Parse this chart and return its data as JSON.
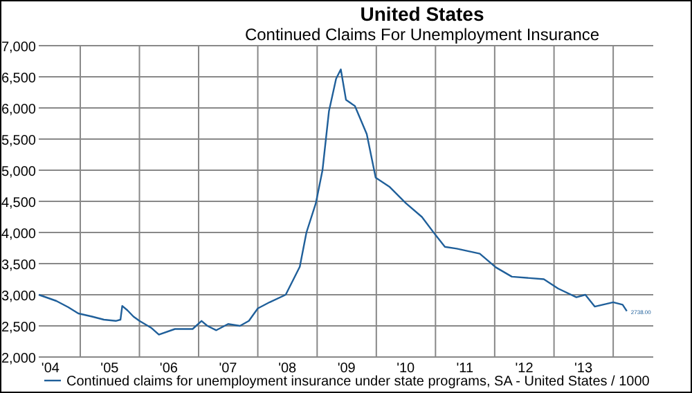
{
  "chart_data": {
    "type": "line",
    "title": "United States",
    "subtitle": "Continued Claims For Unemployment Insurance",
    "x": [
      "2004-04-20",
      "2004-06-14",
      "2004-08-07",
      "2004-10-19",
      "2004-12-20",
      "2005-03-14",
      "2005-05-27",
      "2005-08-08",
      "2005-09-06",
      "2005-09-17",
      "2005-10-19",
      "2005-11-25",
      "2006-01-01",
      "2006-03-14",
      "2006-05-01",
      "2006-08-08",
      "2006-11-25",
      "2007-01-19",
      "2007-02-24",
      "2007-04-20",
      "2007-07-02",
      "2007-09-13",
      "2007-11-07",
      "2008-01-01",
      "2008-03-14",
      "2008-06-21",
      "2008-09-16",
      "2008-10-27",
      "2008-12-24",
      "2009-02-03",
      "2009-03-15",
      "2009-04-28",
      "2009-05-27",
      "2009-06-28",
      "2009-08-22",
      "2009-11-03",
      "2009-12-28",
      "2010-03-25",
      "2010-07-02",
      "2010-10-09",
      "2011-01-01",
      "2011-02-28",
      "2011-05-12",
      "2011-10-01",
      "2012-01-08",
      "2012-04-16",
      "2012-10-30",
      "2013-01-26",
      "2013-05-19",
      "2013-07-13",
      "2013-09-09",
      "2014-01-01",
      "2014-02-28",
      "2014-03-26"
    ],
    "series": [
      {
        "name": "Continued claims for unemployment insurance under state programs, SA - United States / 1000",
        "color": "#1f5f9a",
        "values": [
          3000,
          2950,
          2900,
          2800,
          2700,
          2650,
          2600,
          2580,
          2600,
          2820,
          2750,
          2650,
          2580,
          2470,
          2360,
          2450,
          2450,
          2580,
          2500,
          2430,
          2530,
          2500,
          2580,
          2780,
          2880,
          3000,
          3450,
          4000,
          4470,
          5000,
          5950,
          6470,
          6620,
          6130,
          6030,
          5580,
          4880,
          4730,
          4470,
          4250,
          3960,
          3770,
          3740,
          3660,
          3440,
          3290,
          3250,
          3100,
          2960,
          3000,
          2810,
          2880,
          2840,
          2738
        ]
      }
    ],
    "xlim": [
      "2004-04-20",
      "2014-09-05"
    ],
    "xticks": [
      {
        "value": "2004-07-01",
        "label": "'04"
      },
      {
        "value": "2005-01-01",
        "label": null
      },
      {
        "value": "2005-07-01",
        "label": "'05"
      },
      {
        "value": "2006-01-01",
        "label": null
      },
      {
        "value": "2006-07-01",
        "label": "'06"
      },
      {
        "value": "2007-01-01",
        "label": null
      },
      {
        "value": "2007-07-01",
        "label": "'07"
      },
      {
        "value": "2008-01-01",
        "label": null
      },
      {
        "value": "2008-07-01",
        "label": "'08"
      },
      {
        "value": "2009-01-01",
        "label": null
      },
      {
        "value": "2009-07-01",
        "label": "'09"
      },
      {
        "value": "2010-01-01",
        "label": null
      },
      {
        "value": "2010-07-01",
        "label": "'10"
      },
      {
        "value": "2011-01-01",
        "label": null
      },
      {
        "value": "2011-07-01",
        "label": "'11"
      },
      {
        "value": "2012-01-01",
        "label": null
      },
      {
        "value": "2012-07-01",
        "label": "'12"
      },
      {
        "value": "2013-01-01",
        "label": null
      },
      {
        "value": "2013-07-01",
        "label": "'13"
      },
      {
        "value": "2014-01-01",
        "label": null
      }
    ],
    "ylim": [
      2000,
      7000
    ],
    "yticks": [
      {
        "value": 2000,
        "label": "2,000"
      },
      {
        "value": 2500,
        "label": "2,500"
      },
      {
        "value": 3000,
        "label": "3,000"
      },
      {
        "value": 3500,
        "label": "3,500"
      },
      {
        "value": 4000,
        "label": "4,000"
      },
      {
        "value": 4500,
        "label": "4,500"
      },
      {
        "value": 5000,
        "label": "5,000"
      },
      {
        "value": 5500,
        "label": "5,500"
      },
      {
        "value": 6000,
        "label": "6,000"
      },
      {
        "value": 6500,
        "label": "6,500"
      },
      {
        "value": 7000,
        "label": "7,000"
      }
    ],
    "annotations": [
      {
        "text": "2738.00",
        "x": "2014-03-26",
        "y": 2738
      }
    ],
    "grid": true,
    "legend": "bottom",
    "marker": "none",
    "line_style": "solid"
  }
}
